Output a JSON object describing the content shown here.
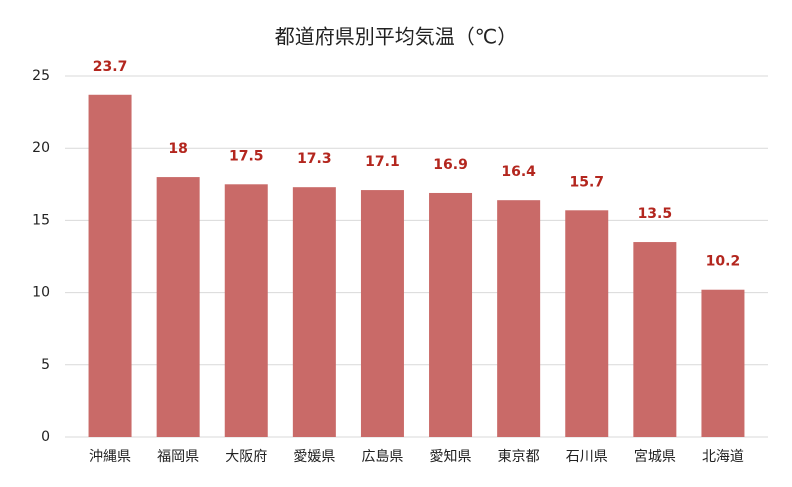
{
  "chart_data": {
    "type": "bar",
    "title": "都道府県別平均気温（℃）",
    "categories": [
      "沖縄県",
      "福岡県",
      "大阪府",
      "愛媛県",
      "広島県",
      "愛知県",
      "東京都",
      "石川県",
      "宮城県",
      "北海道"
    ],
    "values": [
      23.7,
      18,
      17.5,
      17.3,
      17.1,
      16.9,
      16.4,
      15.7,
      13.5,
      10.2
    ],
    "color": "#c96a68",
    "ylim": [
      0,
      25
    ],
    "yticks": [
      0,
      5,
      10,
      15,
      20,
      25
    ],
    "grid": true
  }
}
